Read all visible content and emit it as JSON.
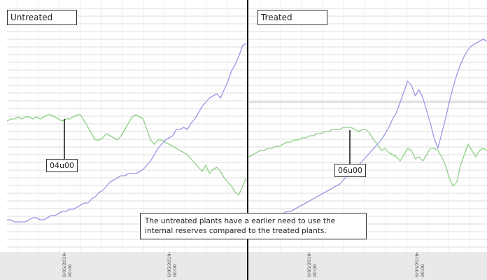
{
  "chart_data": [
    {
      "type": "line",
      "title": "Untreated",
      "annotations": [
        {
          "text": "04u00"
        }
      ],
      "x_ticks": [
        "6/05/2019\n00:00",
        "6/05/2019\n00:00"
      ],
      "grid": true,
      "series": [
        {
          "color": "#8fcf86",
          "values": [
            61,
            62,
            62,
            63,
            62,
            63,
            63,
            62,
            63,
            62,
            63,
            64,
            64,
            63,
            62,
            61,
            62,
            62,
            63,
            64,
            64,
            61,
            58,
            55,
            52,
            52,
            53,
            55,
            54,
            53,
            52,
            54,
            57,
            60,
            63,
            64,
            63,
            62,
            57,
            52,
            50,
            52,
            52,
            51,
            50,
            49,
            48,
            47,
            46,
            45,
            43,
            41,
            39,
            37,
            40,
            36,
            38,
            39,
            37,
            34,
            32,
            30,
            27,
            26,
            30,
            34
          ]
        },
        {
          "color": "#9a98e6",
          "values": [
            14,
            14,
            13,
            13,
            13,
            13,
            14,
            15,
            15,
            14,
            14,
            15,
            16,
            16,
            17,
            18,
            18,
            19,
            19,
            20,
            21,
            22,
            22,
            24,
            25,
            27,
            28,
            30,
            32,
            33,
            34,
            35,
            35,
            36,
            36,
            36,
            37,
            38,
            40,
            42,
            45,
            48,
            50,
            52,
            53,
            54,
            57,
            57,
            58,
            57,
            60,
            62,
            65,
            68,
            70,
            72,
            73,
            74,
            72,
            76,
            80,
            85,
            88,
            92,
            97,
            98
          ]
        }
      ]
    },
    {
      "type": "line",
      "title": "Treated",
      "annotations": [
        {
          "text": "06u00"
        }
      ],
      "x_ticks": [
        "6/05/2019\n00:00",
        "6/05/2019\n00:00"
      ],
      "grid": true,
      "series": [
        {
          "color": "#8fcf86",
          "values": [
            44,
            45,
            46,
            47,
            47,
            48,
            48,
            49,
            49,
            50,
            51,
            51,
            52,
            52,
            53,
            53,
            54,
            54,
            55,
            55,
            56,
            56,
            57,
            57,
            57,
            58,
            58,
            58,
            57,
            56,
            57,
            57,
            55,
            52,
            50,
            47,
            48,
            46,
            45,
            44,
            42,
            45,
            48,
            47,
            43,
            44,
            42,
            45,
            48,
            48,
            47,
            44,
            40,
            34,
            30,
            32,
            40,
            45,
            50,
            47,
            44,
            47,
            48,
            47
          ]
        },
        {
          "color": "#9a98e6",
          "values": [
            15,
            15,
            15,
            15,
            15,
            15,
            16,
            16,
            17,
            17,
            18,
            18,
            19,
            20,
            21,
            22,
            23,
            24,
            25,
            26,
            27,
            28,
            29,
            30,
            31,
            33,
            35,
            37,
            39,
            40,
            42,
            44,
            46,
            48,
            50,
            52,
            55,
            58,
            62,
            65,
            70,
            75,
            80,
            78,
            73,
            76,
            72,
            66,
            60,
            53,
            48,
            55,
            62,
            70,
            77,
            83,
            88,
            92,
            95,
            97,
            98,
            99,
            100,
            99
          ]
        }
      ]
    }
  ],
  "note": {
    "line1": "The untreated plants have a earlier need to use the",
    "line2": "internal reserves compared to the treated plants."
  },
  "colors": {
    "green": "#8fcf86",
    "blue": "#9a98e6",
    "grid": "#dcdcdc",
    "divider": "#111111",
    "axis_band": "#e9e9e9"
  }
}
